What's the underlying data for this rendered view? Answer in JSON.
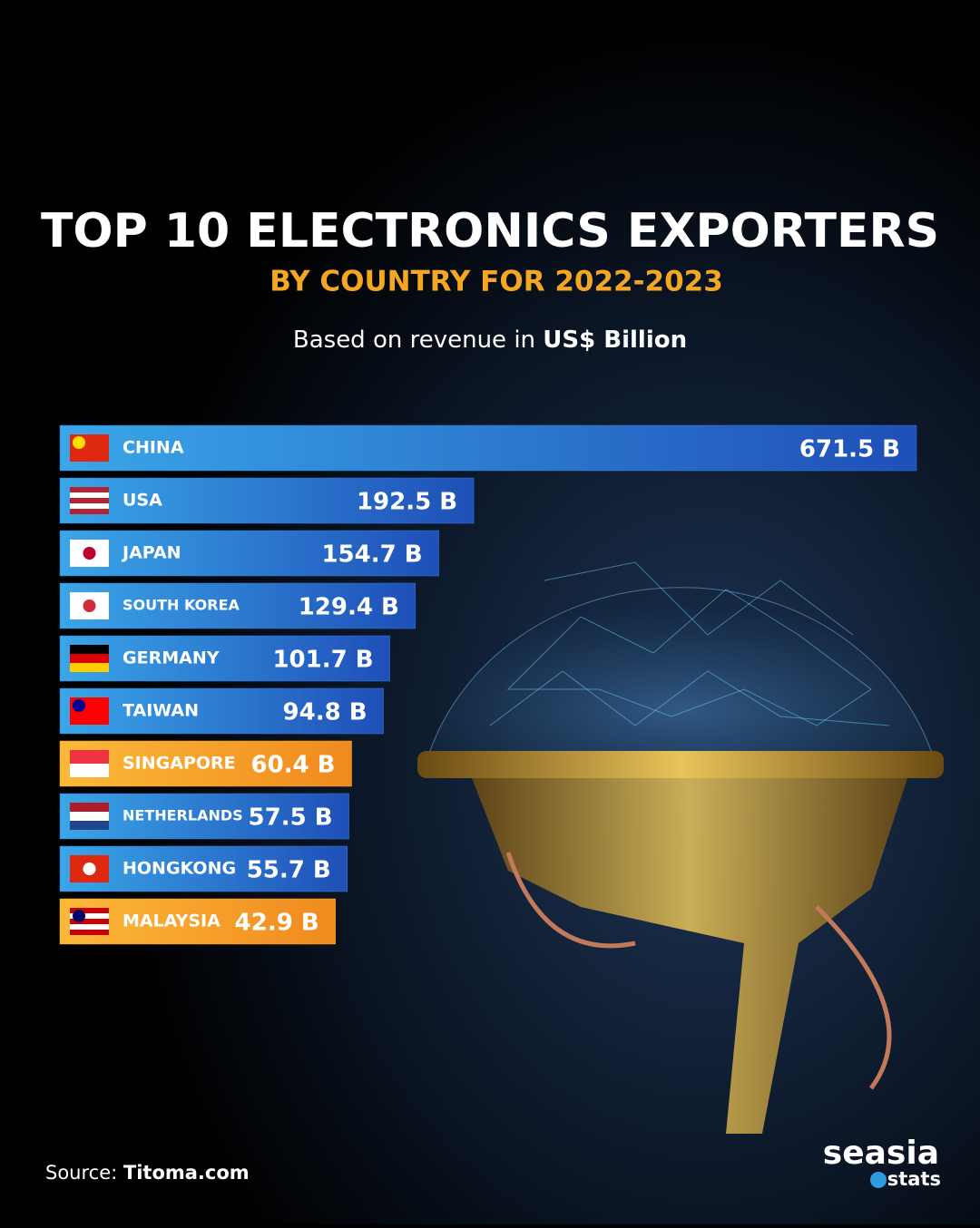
{
  "chart_data": {
    "type": "bar",
    "orientation": "horizontal",
    "title": "TOP 10 ELECTRONICS EXPORTERS",
    "subtitle": "BY COUNTRY FOR 2022-2023",
    "note": "Based on revenue in",
    "note_unit": "US$ Billion",
    "categories": [
      "CHINA",
      "USA",
      "JAPAN",
      "SOUTH KOREA",
      "GERMANY",
      "TAIWAN",
      "SINGAPORE",
      "NETHERLANDS",
      "HONGKONG",
      "MALAYSIA"
    ],
    "values": [
      671.5,
      192.5,
      154.7,
      129.4,
      101.7,
      94.8,
      60.4,
      57.5,
      55.7,
      42.9
    ],
    "value_labels": [
      "671.5 B",
      "192.5 B",
      "154.7 B",
      "129.4 B",
      "101.7 B",
      "94.8 B",
      "60.4 B",
      "57.5 B",
      "55.7 B",
      "42.9 B"
    ],
    "colors": [
      "#2f7fd8",
      "#2f7fd8",
      "#2f7fd8",
      "#2f7fd8",
      "#2f7fd8",
      "#2f7fd8",
      "#f5a623",
      "#2f7fd8",
      "#2f7fd8",
      "#f5a623"
    ],
    "source_label": "Source:",
    "source": "Titoma.com",
    "brand": "seasia",
    "brand_sub": "stats"
  }
}
